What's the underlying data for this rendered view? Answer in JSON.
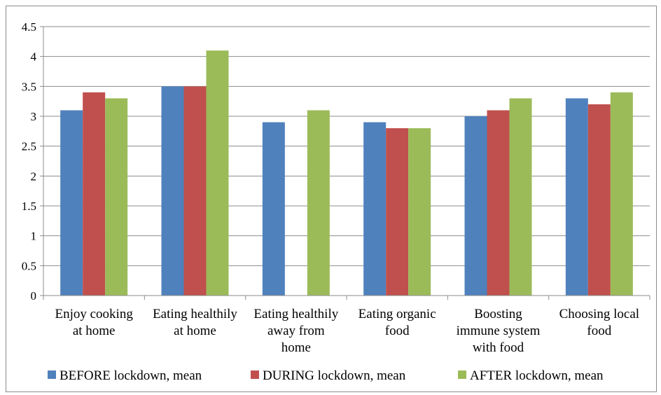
{
  "chart_data": {
    "type": "bar",
    "title": "",
    "xlabel": "",
    "ylabel": "",
    "ylim": [
      0,
      4.5
    ],
    "yticks": [
      "0",
      "0.5",
      "1",
      "1.5",
      "2",
      "2.5",
      "3",
      "3.5",
      "4",
      "4.5"
    ],
    "grid": true,
    "legend_position": "bottom",
    "categories": [
      [
        "Enjoy cooking",
        "at home"
      ],
      [
        "Eating healthily",
        "at home"
      ],
      [
        "Eating healthily",
        "away from",
        "home"
      ],
      [
        "Eating organic",
        "food"
      ],
      [
        "Boosting",
        "immune system",
        "with food"
      ],
      [
        "Choosing local",
        "food"
      ]
    ],
    "series": [
      {
        "name": "BEFORE lockdown, mean",
        "color": "#4f81bd",
        "values": [
          3.1,
          3.5,
          2.9,
          2.9,
          3.0,
          3.3
        ]
      },
      {
        "name": "DURING lockdown, mean",
        "color": "#c0504d",
        "values": [
          3.4,
          3.5,
          null,
          2.8,
          3.1,
          3.2
        ]
      },
      {
        "name": "AFTER lockdown, mean",
        "color": "#9bbb59",
        "values": [
          3.3,
          4.1,
          3.1,
          2.8,
          3.3,
          3.4
        ]
      }
    ]
  }
}
